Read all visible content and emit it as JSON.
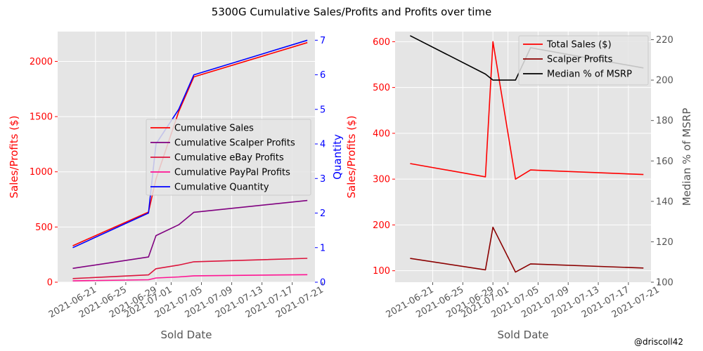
{
  "suptitle": "5300G Cumulative Sales/Profits and Profits over time",
  "credit": "@driscoll42",
  "chart_data": [
    {
      "type": "line",
      "x_dates": [
        "2021-06-18",
        "2021-06-28",
        "2021-06-29",
        "2021-07-02",
        "2021-07-04",
        "2021-07-19"
      ],
      "xlabel": "Sold Date",
      "xticks": [
        "2021-06-21",
        "2021-06-25",
        "2021-06-29",
        "2021-07-01",
        "2021-07-05",
        "2021-07-09",
        "2021-07-13",
        "2021-07-17",
        "2021-07-21"
      ],
      "ylabel": "Sales/Profits ($)",
      "ylabel_color": "#ff0000",
      "ylim": [
        0,
        2270
      ],
      "yticks": [
        0,
        500,
        1000,
        1500,
        2000
      ],
      "y2label": "Quantity",
      "y2label_color": "#0000ff",
      "y2lim": [
        0,
        7.25
      ],
      "y2ticks": [
        0,
        1,
        2,
        3,
        4,
        5,
        6,
        7
      ],
      "series": [
        {
          "name": "Cumulative Sales",
          "axis": "left",
          "color": "#ff0000",
          "values": [
            330,
            635,
            935,
            1545,
            1860,
            2170
          ]
        },
        {
          "name": "Cumulative Scalper Profits",
          "axis": "left",
          "color": "#800080",
          "values": [
            125,
            228,
            422,
            520,
            633,
            740
          ]
        },
        {
          "name": "Cumulative eBay Profits",
          "axis": "left",
          "color": "#dc143c",
          "values": [
            33,
            66,
            122,
            155,
            185,
            216
          ]
        },
        {
          "name": "Cumulative PayPal Profits",
          "axis": "left",
          "color": "#ff1493",
          "values": [
            12,
            22,
            38,
            48,
            58,
            68
          ]
        },
        {
          "name": "Cumulative Quantity",
          "axis": "right",
          "color": "#0000ff",
          "values": [
            1,
            2,
            4,
            5,
            6,
            7
          ]
        }
      ],
      "grid": true,
      "legend_position": "center-right"
    },
    {
      "type": "line",
      "x_dates": [
        "2021-06-18",
        "2021-06-28",
        "2021-06-29",
        "2021-07-02",
        "2021-07-04",
        "2021-07-19"
      ],
      "xlabel": "Sold Date",
      "xticks": [
        "2021-06-21",
        "2021-06-25",
        "2021-06-29",
        "2021-07-01",
        "2021-07-05",
        "2021-07-09",
        "2021-07-13",
        "2021-07-17",
        "2021-07-21"
      ],
      "ylabel": "Sales/Profits ($)",
      "ylabel_color": "#ff0000",
      "ylim": [
        75,
        622
      ],
      "yticks": [
        100,
        200,
        300,
        400,
        500,
        600
      ],
      "y2label": "Median % of MSRP",
      "y2label_color": "#555555",
      "y2lim": [
        100,
        224
      ],
      "y2ticks": [
        100,
        120,
        140,
        160,
        180,
        200,
        220
      ],
      "series": [
        {
          "name": "Total Sales ($)",
          "axis": "left",
          "color": "#ff0000",
          "values": [
            334,
            305,
            600,
            300,
            320,
            310
          ]
        },
        {
          "name": "Scalper Profits",
          "axis": "left",
          "color": "#8b0000",
          "values": [
            127,
            102,
            195,
            97,
            115,
            106
          ]
        },
        {
          "name": "Median % of MSRP",
          "axis": "right",
          "color": "#000000",
          "values": [
            222,
            203,
            200,
            200,
            216,
            206
          ]
        }
      ],
      "grid": true,
      "legend_position": "upper-right"
    }
  ]
}
